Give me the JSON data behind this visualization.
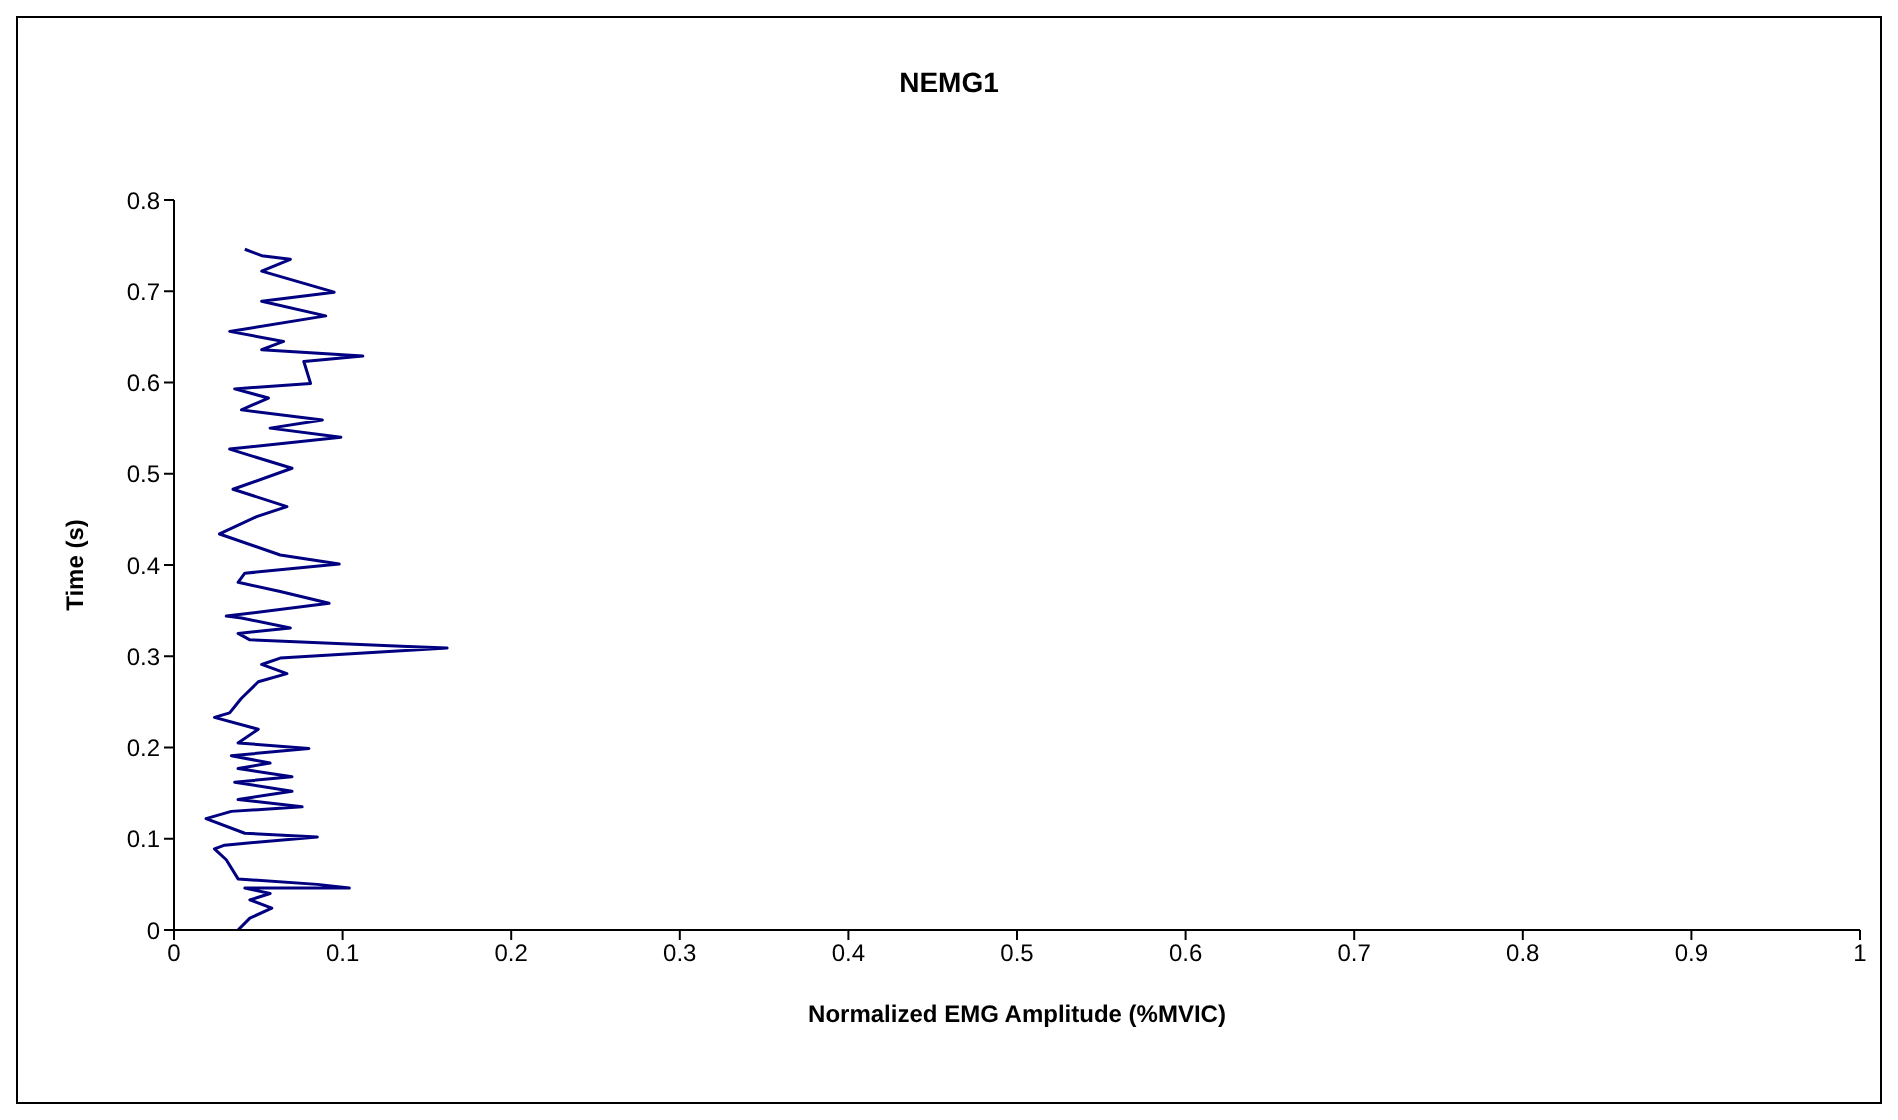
{
  "chart_data": {
    "type": "line",
    "title": "NEMG1",
    "xlabel": "Normalized EMG Amplitude (%MVIC)",
    "ylabel": "Time (s)",
    "x": [
      0.038,
      0.045,
      0.058,
      0.045,
      0.057,
      0.042,
      0.104,
      0.085,
      0.038,
      0.031,
      0.024,
      0.03,
      0.085,
      0.042,
      0.019,
      0.034,
      0.076,
      0.038,
      0.07,
      0.036,
      0.07,
      0.038,
      0.057,
      0.034,
      0.08,
      0.038,
      0.05,
      0.024,
      0.033,
      0.04,
      0.05,
      0.067,
      0.052,
      0.063,
      0.162,
      0.135,
      0.045,
      0.038,
      0.069,
      0.04,
      0.031,
      0.092,
      0.063,
      0.038,
      0.042,
      0.098,
      0.063,
      0.027,
      0.049,
      0.067,
      0.035,
      0.07,
      0.033,
      0.099,
      0.057,
      0.088,
      0.04,
      0.056,
      0.036,
      0.081,
      0.077,
      0.112,
      0.052,
      0.065,
      0.033,
      0.09,
      0.052,
      0.095,
      0.052,
      0.069,
      0.052,
      0.042
    ],
    "series": [
      {
        "color": "#000080",
        "values": [
          0.0,
          0.013,
          0.024,
          0.033,
          0.04,
          0.046,
          0.046,
          0.05,
          0.056,
          0.077,
          0.089,
          0.093,
          0.102,
          0.106,
          0.122,
          0.13,
          0.135,
          0.143,
          0.152,
          0.162,
          0.168,
          0.177,
          0.183,
          0.191,
          0.199,
          0.205,
          0.22,
          0.233,
          0.238,
          0.254,
          0.272,
          0.281,
          0.291,
          0.298,
          0.309,
          0.311,
          0.318,
          0.325,
          0.331,
          0.342,
          0.344,
          0.358,
          0.371,
          0.381,
          0.391,
          0.401,
          0.411,
          0.434,
          0.453,
          0.464,
          0.483,
          0.506,
          0.527,
          0.54,
          0.55,
          0.559,
          0.57,
          0.583,
          0.593,
          0.599,
          0.623,
          0.629,
          0.636,
          0.645,
          0.656,
          0.673,
          0.689,
          0.699,
          0.722,
          0.735,
          0.739,
          0.746
        ]
      }
    ],
    "xlim": [
      0,
      1
    ],
    "xticks": [
      0,
      0.1,
      0.2,
      0.3,
      0.4,
      0.5,
      0.6,
      0.7,
      0.8,
      0.9,
      1
    ],
    "ylim": [
      0,
      0.8
    ],
    "yticks": [
      0,
      0.1,
      0.2,
      0.3,
      0.4,
      0.5,
      0.6,
      0.7,
      0.8
    ],
    "grid": false,
    "marker": "none",
    "line_style": "solid"
  }
}
